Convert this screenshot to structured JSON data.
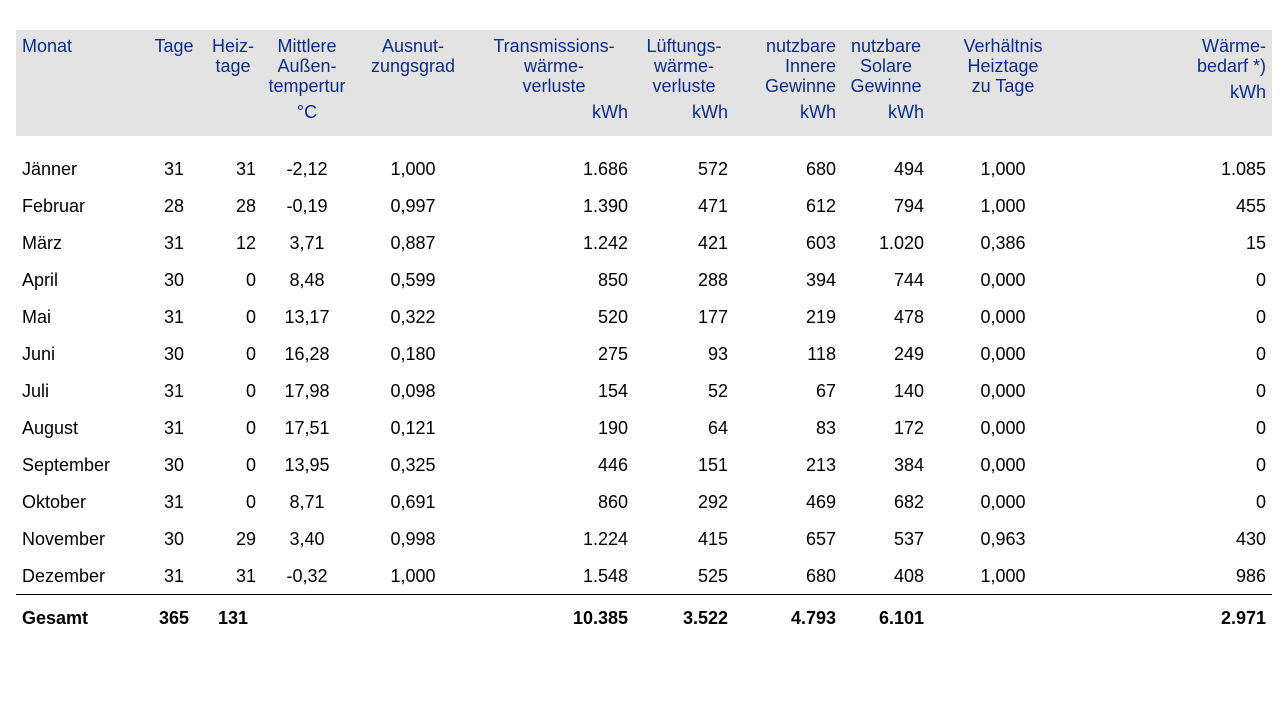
{
  "headers": [
    {
      "label": "Monat",
      "unit": ""
    },
    {
      "label": "Tage",
      "unit": ""
    },
    {
      "label": "Heiz-\ntage",
      "unit": ""
    },
    {
      "label": "Mittlere\nAußen-\ntempertur",
      "unit": "°C"
    },
    {
      "label": "Ausnut-\nzungsgrad",
      "unit": ""
    },
    {
      "label": "Transmissions-\nwärme-\nverluste",
      "unit": "kWh"
    },
    {
      "label": "Lüftungs-\nwärme-\nverluste",
      "unit": "kWh"
    },
    {
      "label": "nutzbare\nInnere\nGewinne",
      "unit": "kWh"
    },
    {
      "label": "nutzbare\nSolare\nGewinne",
      "unit": "kWh"
    },
    {
      "label": "Verhältnis\nHeiztage\nzu Tage",
      "unit": ""
    },
    {
      "label": "Wärme-\nbedarf *)",
      "unit": "kWh"
    }
  ],
  "rows": [
    [
      "Jänner",
      "31",
      "31",
      "-2,12",
      "1,000",
      "1.686",
      "572",
      "680",
      "494",
      "1,000",
      "1.085"
    ],
    [
      "Februar",
      "28",
      "28",
      "-0,19",
      "0,997",
      "1.390",
      "471",
      "612",
      "794",
      "1,000",
      "455"
    ],
    [
      "März",
      "31",
      "12",
      "3,71",
      "0,887",
      "1.242",
      "421",
      "603",
      "1.020",
      "0,386",
      "15"
    ],
    [
      "April",
      "30",
      "0",
      "8,48",
      "0,599",
      "850",
      "288",
      "394",
      "744",
      "0,000",
      "0"
    ],
    [
      "Mai",
      "31",
      "0",
      "13,17",
      "0,322",
      "520",
      "177",
      "219",
      "478",
      "0,000",
      "0"
    ],
    [
      "Juni",
      "30",
      "0",
      "16,28",
      "0,180",
      "275",
      "93",
      "118",
      "249",
      "0,000",
      "0"
    ],
    [
      "Juli",
      "31",
      "0",
      "17,98",
      "0,098",
      "154",
      "52",
      "67",
      "140",
      "0,000",
      "0"
    ],
    [
      "August",
      "31",
      "0",
      "17,51",
      "0,121",
      "190",
      "64",
      "83",
      "172",
      "0,000",
      "0"
    ],
    [
      "September",
      "30",
      "0",
      "13,95",
      "0,325",
      "446",
      "151",
      "213",
      "384",
      "0,000",
      "0"
    ],
    [
      "Oktober",
      "31",
      "0",
      "8,71",
      "0,691",
      "860",
      "292",
      "469",
      "682",
      "0,000",
      "0"
    ],
    [
      "November",
      "30",
      "29",
      "3,40",
      "0,998",
      "1.224",
      "415",
      "657",
      "537",
      "0,963",
      "430"
    ],
    [
      "Dezember",
      "31",
      "31",
      "-0,32",
      "1,000",
      "1.548",
      "525",
      "680",
      "408",
      "1,000",
      "986"
    ]
  ],
  "total": [
    "Gesamt",
    "365",
    "131",
    "",
    "",
    "10.385",
    "3.522",
    "4.793",
    "6.101",
    "",
    "2.971"
  ]
}
